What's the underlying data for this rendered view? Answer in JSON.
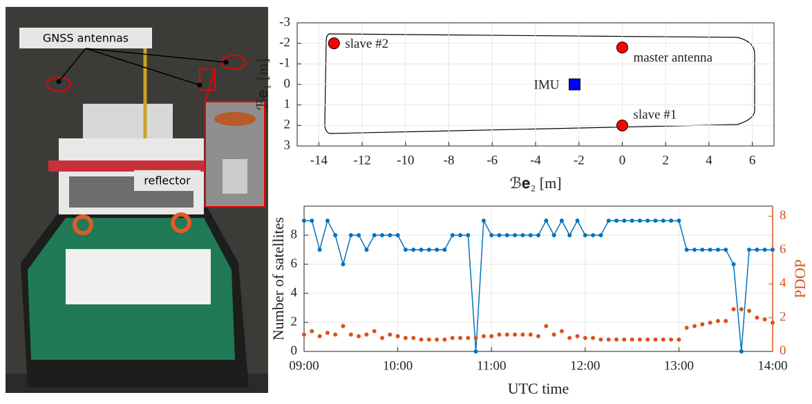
{
  "photo": {
    "labels": [
      "GNSS antennas",
      "reflector"
    ]
  },
  "chart_data": [
    {
      "type": "scatter",
      "xlabel": "ℬ𝐞₂ [m]",
      "ylabel": "ℬ𝐞₁ [m]",
      "xlim": [
        -15,
        7
      ],
      "ylim": [
        -3,
        3
      ],
      "y_inverted": true,
      "grid": true,
      "xticks": [
        -14,
        -12,
        -10,
        -8,
        -6,
        -4,
        -2,
        0,
        2,
        4,
        6
      ],
      "yticks": [
        -3,
        -2,
        -1,
        0,
        1,
        2,
        3
      ],
      "series": [
        {
          "name": "slave #2",
          "color": "#ff0000",
          "marker": "circle",
          "x": [
            -13.3
          ],
          "values": [
            -2
          ]
        },
        {
          "name": "master antenna",
          "color": "#ff0000",
          "marker": "circle",
          "x": [
            0
          ],
          "values": [
            -1.8
          ]
        },
        {
          "name": "IMU",
          "color": "#0000ff",
          "marker": "square",
          "x": [
            -2.2
          ],
          "values": [
            0
          ]
        },
        {
          "name": "slave #1",
          "color": "#ff0000",
          "marker": "circle",
          "x": [
            0
          ],
          "values": [
            2
          ]
        }
      ]
    },
    {
      "type": "line",
      "xlabel": "UTC time",
      "ylabel": "Number of satellites",
      "y2label": "PDOP",
      "xlim": [
        "09:00",
        "14:00"
      ],
      "xticks": [
        "09:00",
        "10:00",
        "11:00",
        "12:00",
        "13:00",
        "14:00"
      ],
      "ylim": [
        0,
        10
      ],
      "yticks": [
        0,
        2,
        4,
        6,
        8
      ],
      "y2lim": [
        0,
        8.6
      ],
      "y2ticks": [
        0,
        2,
        4,
        6,
        8
      ],
      "grid": true,
      "x": [
        "09:00",
        "09:05",
        "09:10",
        "09:15",
        "09:20",
        "09:25",
        "09:30",
        "09:35",
        "09:40",
        "09:45",
        "09:50",
        "09:55",
        "10:00",
        "10:05",
        "10:10",
        "10:15",
        "10:20",
        "10:25",
        "10:30",
        "10:35",
        "10:40",
        "10:45",
        "10:50",
        "10:55",
        "11:00",
        "11:05",
        "11:10",
        "11:15",
        "11:20",
        "11:25",
        "11:30",
        "11:35",
        "11:40",
        "11:45",
        "11:50",
        "11:55",
        "12:00",
        "12:05",
        "12:10",
        "12:15",
        "12:20",
        "12:25",
        "12:30",
        "12:35",
        "12:40",
        "12:45",
        "12:50",
        "12:55",
        "13:00",
        "13:05",
        "13:10",
        "13:15",
        "13:20",
        "13:25",
        "13:30",
        "13:35",
        "13:40",
        "13:45",
        "13:50",
        "13:55",
        "14:00"
      ],
      "series": [
        {
          "color": "#0072bd",
          "style": "line",
          "values": [
            9,
            9,
            7,
            9,
            8,
            6,
            8,
            8,
            7,
            8,
            8,
            8,
            8,
            7,
            7,
            7,
            7,
            7,
            7,
            8,
            8,
            8,
            0,
            9,
            8,
            8,
            8,
            8,
            8,
            8,
            8,
            9,
            8,
            9,
            8,
            9,
            8,
            8,
            8,
            9,
            9,
            9,
            9,
            9,
            9,
            9,
            9,
            9,
            9,
            7,
            7,
            7,
            7,
            7,
            7,
            6,
            0,
            7,
            7,
            7,
            7
          ]
        },
        {
          "color": "#d95319",
          "style": "dots",
          "axis": "y2",
          "values": [
            1,
            1.2,
            0.9,
            1.1,
            1,
            1.5,
            1,
            0.9,
            1,
            1.2,
            0.8,
            1,
            0.9,
            0.8,
            0.8,
            0.7,
            0.7,
            0.7,
            0.7,
            0.8,
            0.8,
            0.8,
            0.8,
            0.9,
            0.9,
            1,
            1,
            1,
            1,
            1,
            0.9,
            1.5,
            1,
            1.2,
            0.8,
            0.9,
            0.8,
            0.8,
            0.7,
            0.7,
            0.7,
            0.7,
            0.7,
            0.7,
            0.7,
            0.7,
            0.7,
            0.7,
            0.7,
            1.4,
            1.5,
            1.6,
            1.7,
            1.8,
            1.8,
            2.5,
            2.5,
            2.4,
            2,
            1.9,
            1.7
          ]
        }
      ]
    }
  ]
}
